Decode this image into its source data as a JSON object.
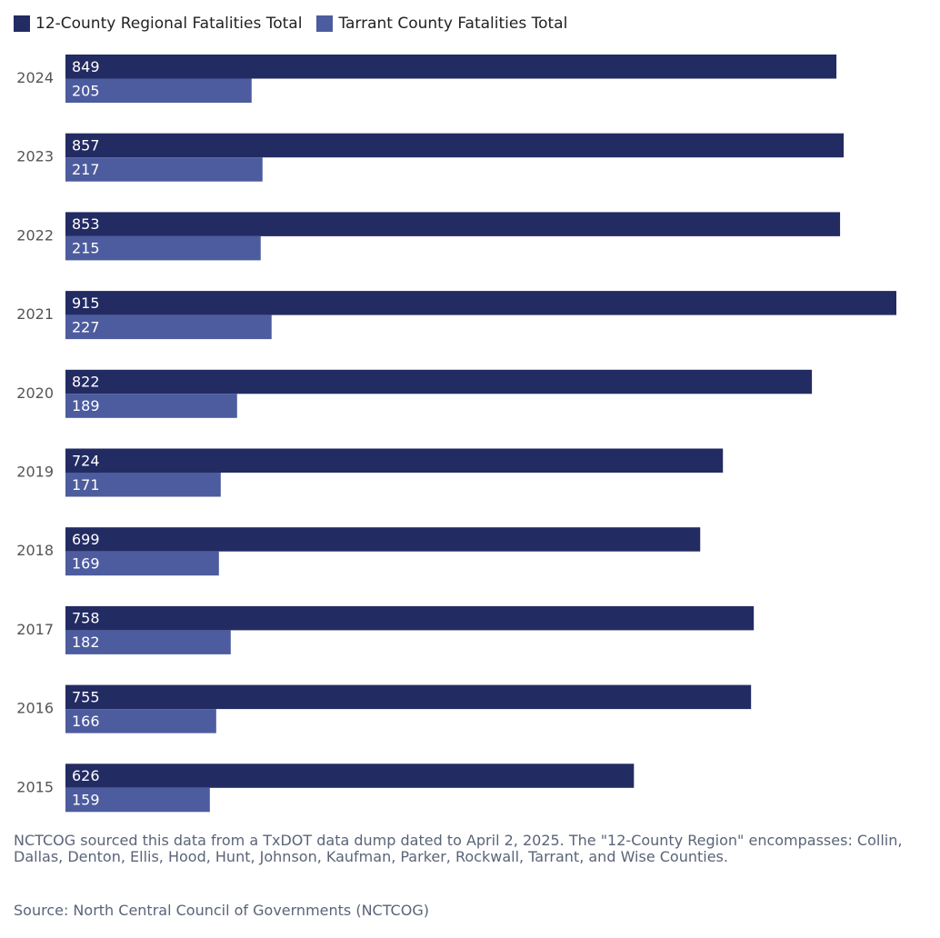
{
  "chart_data": {
    "type": "bar",
    "orientation": "horizontal",
    "categories": [
      "2024",
      "2023",
      "2022",
      "2021",
      "2020",
      "2019",
      "2018",
      "2017",
      "2016",
      "2015"
    ],
    "series": [
      {
        "name": "12-County Regional Fatalities Total",
        "color": "#232b63",
        "values": [
          849,
          857,
          853,
          915,
          822,
          724,
          699,
          758,
          755,
          626
        ]
      },
      {
        "name": "Tarrant County Fatalities Total",
        "color": "#4d5c9e",
        "values": [
          205,
          217,
          215,
          227,
          189,
          171,
          169,
          182,
          166,
          159
        ]
      }
    ],
    "xlim": [
      0,
      915
    ],
    "legend_position": "top-left",
    "grid": false,
    "data_labels": true
  },
  "footnote": "NCTCOG sourced this data from a TxDOT data dump dated to April 2, 2025. The \"12-County Region\" encompasses: Collin, Dallas, Denton, Ellis, Hood, Hunt, Johnson, Kaufman, Parker, Rockwall, Tarrant, and Wise Counties.",
  "source": "Source: North Central Council of Governments (NCTCOG)"
}
